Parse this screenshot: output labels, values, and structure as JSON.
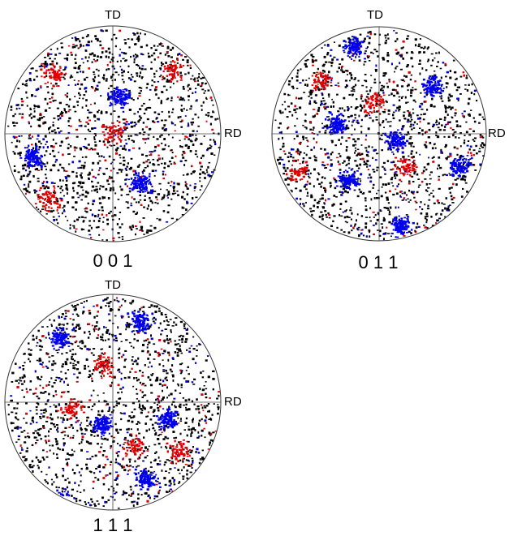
{
  "figures": [
    {
      "top_axis": "TD",
      "right_axis": "RD",
      "label": "0 0 1"
    },
    {
      "top_axis": "TD",
      "right_axis": "RD",
      "label": "0 1 1"
    },
    {
      "top_axis": "TD",
      "right_axis": "RD",
      "label": "1 1 1"
    }
  ]
}
